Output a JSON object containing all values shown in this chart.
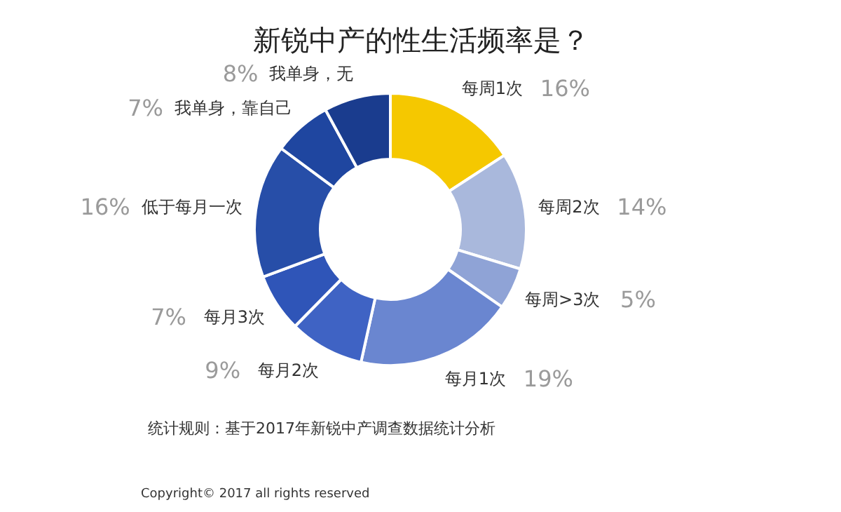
{
  "chart_data": {
    "type": "donut",
    "title": "新锐中产的性生活频率是？",
    "categories": [
      "每周1次",
      "每周2次",
      "每周>3次",
      "每月1次",
      "每月2次",
      "每月3次",
      "低于每月一次",
      "我单身，靠自己",
      "我单身，无"
    ],
    "values": [
      16,
      14,
      5,
      19,
      9,
      7,
      16,
      7,
      8
    ],
    "colors": [
      "#f5c800",
      "#a9b8dc",
      "#8fa3d6",
      "#6a86d0",
      "#3f63c4",
      "#2f55b8",
      "#274ea8",
      "#1f46a0",
      "#1a3c8e"
    ],
    "value_labels": [
      "16%",
      "14%",
      "5%",
      "19%",
      "9%",
      "7%",
      "16%",
      "7%",
      "8%"
    ],
    "annotations": [
      "统计规则：基于2017年新锐中产调查数据统计分析",
      "Copyright© 2017 all rights reserved"
    ]
  }
}
